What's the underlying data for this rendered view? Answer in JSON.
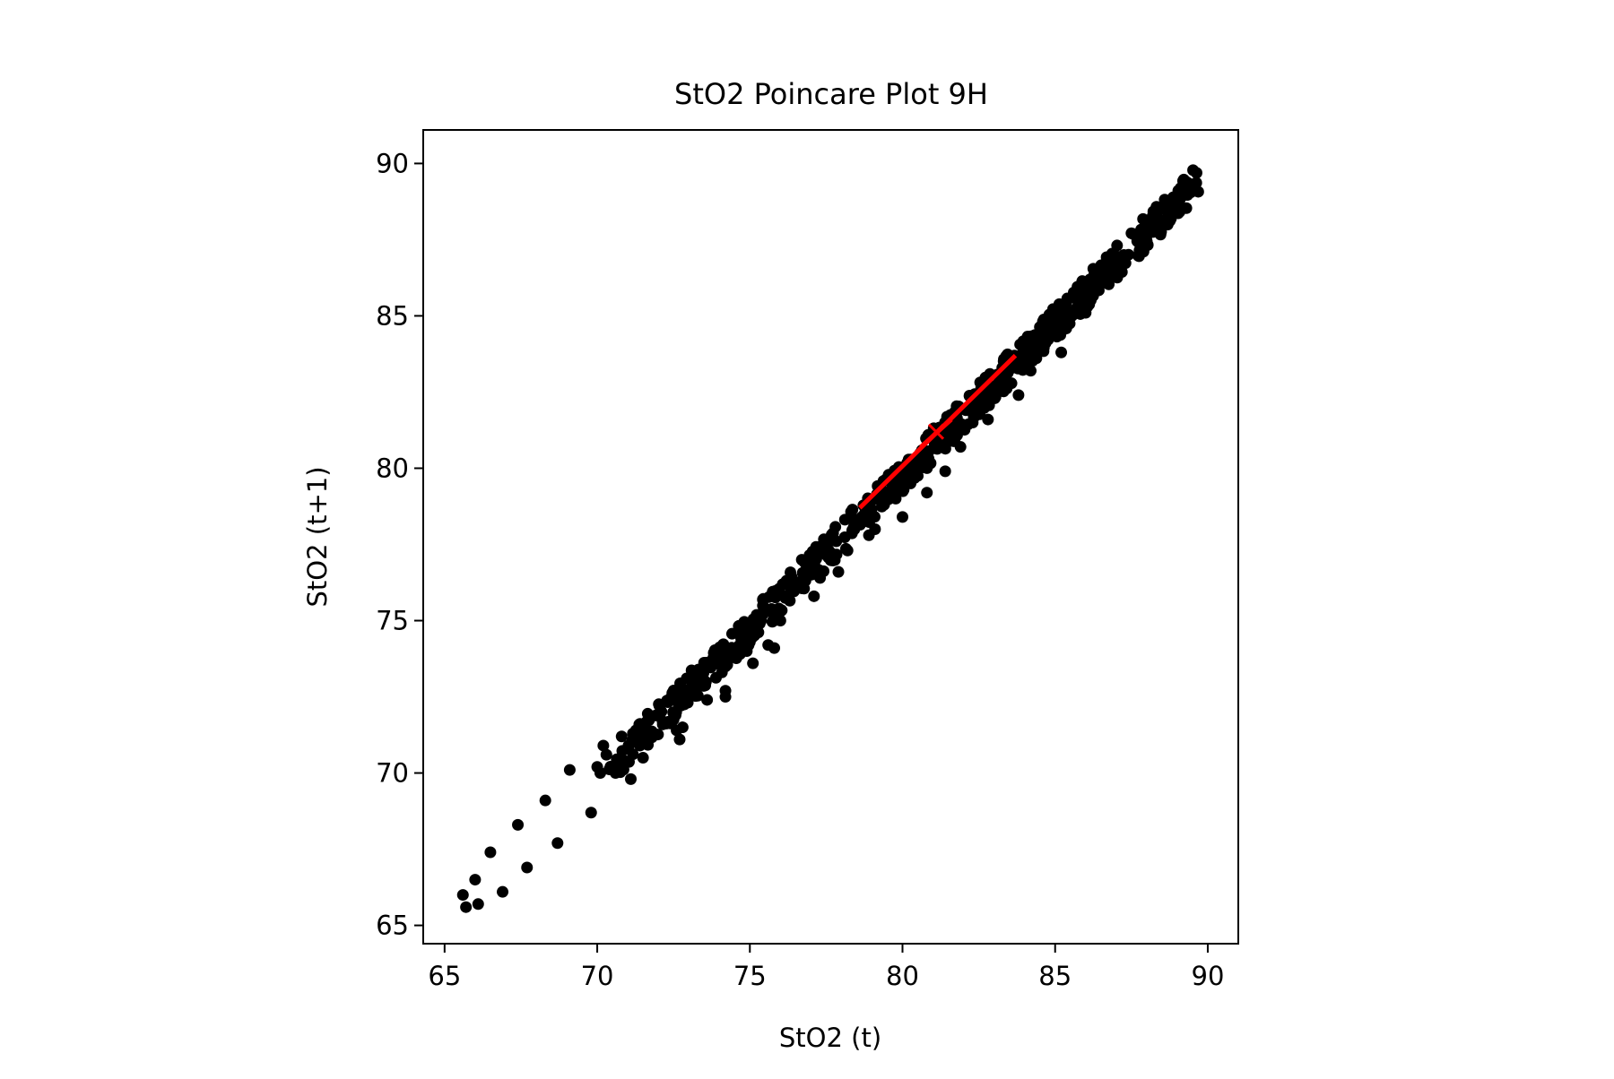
{
  "chart_data": {
    "type": "scatter",
    "title": "StO2 Poincare Plot 9H",
    "xlabel": "StO2 (t)",
    "ylabel": "StO2 (t+1)",
    "xlim": [
      64.3,
      91.0
    ],
    "ylim": [
      64.4,
      91.1
    ],
    "xticks": [
      65,
      70,
      75,
      80,
      85,
      90
    ],
    "yticks": [
      65,
      70,
      75,
      80,
      85,
      90
    ],
    "grid": false,
    "colors": {
      "points": "#000000",
      "axes": "#000000",
      "overlay": "#ff0000"
    },
    "outlier_points": [
      {
        "x": 65.6,
        "y": 66.0
      },
      {
        "x": 65.7,
        "y": 65.6
      },
      {
        "x": 66.0,
        "y": 66.5
      },
      {
        "x": 66.1,
        "y": 65.7
      },
      {
        "x": 66.5,
        "y": 67.4
      },
      {
        "x": 66.9,
        "y": 66.1
      },
      {
        "x": 67.4,
        "y": 68.3
      },
      {
        "x": 67.7,
        "y": 66.9
      },
      {
        "x": 68.3,
        "y": 69.1
      },
      {
        "x": 68.7,
        "y": 67.7
      },
      {
        "x": 69.1,
        "y": 70.1
      },
      {
        "x": 69.8,
        "y": 68.7
      },
      {
        "x": 70.0,
        "y": 70.2
      },
      {
        "x": 70.1,
        "y": 70.0
      },
      {
        "x": 70.2,
        "y": 70.9
      },
      {
        "x": 70.3,
        "y": 70.6
      },
      {
        "x": 70.6,
        "y": 70.0
      },
      {
        "x": 70.8,
        "y": 71.2
      },
      {
        "x": 71.0,
        "y": 70.8
      },
      {
        "x": 71.1,
        "y": 69.8
      },
      {
        "x": 71.4,
        "y": 70.9
      },
      {
        "x": 71.5,
        "y": 70.5
      },
      {
        "x": 72.6,
        "y": 71.4
      },
      {
        "x": 72.7,
        "y": 71.1
      },
      {
        "x": 72.8,
        "y": 71.5
      },
      {
        "x": 73.6,
        "y": 72.4
      },
      {
        "x": 74.2,
        "y": 72.7
      },
      {
        "x": 74.2,
        "y": 72.5
      },
      {
        "x": 74.3,
        "y": 73.8
      },
      {
        "x": 74.9,
        "y": 74.0
      },
      {
        "x": 75.0,
        "y": 74.3
      },
      {
        "x": 75.1,
        "y": 73.6
      },
      {
        "x": 75.6,
        "y": 74.2
      },
      {
        "x": 75.8,
        "y": 74.1
      },
      {
        "x": 76.0,
        "y": 75.0
      },
      {
        "x": 76.0,
        "y": 75.3
      },
      {
        "x": 77.1,
        "y": 75.8
      },
      {
        "x": 77.3,
        "y": 76.4
      },
      {
        "x": 77.9,
        "y": 76.6
      },
      {
        "x": 78.2,
        "y": 77.3
      },
      {
        "x": 78.9,
        "y": 77.8
      },
      {
        "x": 79.1,
        "y": 78.0
      },
      {
        "x": 80.0,
        "y": 78.4
      },
      {
        "x": 80.8,
        "y": 79.2
      },
      {
        "x": 81.4,
        "y": 79.9
      },
      {
        "x": 81.9,
        "y": 80.7
      },
      {
        "x": 82.3,
        "y": 81.5
      },
      {
        "x": 82.8,
        "y": 81.6
      },
      {
        "x": 83.8,
        "y": 82.4
      },
      {
        "x": 84.2,
        "y": 83.2
      },
      {
        "x": 85.2,
        "y": 83.8
      },
      {
        "x": 86.0,
        "y": 85.1
      },
      {
        "x": 86.8,
        "y": 86.3
      },
      {
        "x": 87.7,
        "y": 87.5
      },
      {
        "x": 88.3,
        "y": 88.0
      },
      {
        "x": 88.7,
        "y": 88.4
      }
    ],
    "dense_band": {
      "x_range": [
        70.3,
        89.7
      ],
      "y_offset_range": [
        -0.8,
        0.3
      ],
      "point_count": 700
    },
    "overlay": {
      "sd_line_1": {
        "x": [
          78.6,
          83.7
        ],
        "y": [
          78.7,
          83.7
        ]
      },
      "sd_line_2": {
        "x": [
          80.6,
          81.6
        ],
        "y": [
          80.7,
          81.6
        ]
      },
      "centroid": {
        "x": 81.1,
        "y": 81.2
      }
    }
  }
}
